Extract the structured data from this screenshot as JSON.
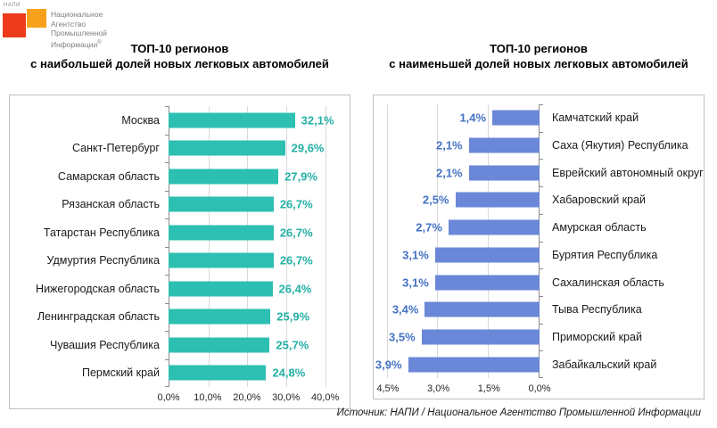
{
  "logo": {
    "mark_word": "НАПИ",
    "org_lines": [
      "Национальное",
      "Агентство",
      "Промышленной",
      "Информации"
    ],
    "registered_mark": "®",
    "red": "#ed3b1b",
    "orange": "#f7a11c"
  },
  "footer": {
    "source": "Источник: НАПИ / Национальное Агентство Промышленной Информации"
  },
  "chart_data": [
    {
      "type": "bar",
      "orientation": "horizontal",
      "direction": "left-to-right",
      "title_lines": [
        "ТОП-10 регионов",
        "с наибольшей долей новых легковых автомобилей"
      ],
      "categories": [
        "Москва",
        "Санкт-Петербург",
        "Самарская область",
        "Рязанская область",
        "Татарстан Республика",
        "Удмуртия Республика",
        "Нижегородская область",
        "Ленинградская область",
        "Чувашия Республика",
        "Пермский край"
      ],
      "values": [
        32.1,
        29.6,
        27.9,
        26.7,
        26.7,
        26.7,
        26.4,
        25.9,
        25.7,
        24.8
      ],
      "value_labels": [
        "32,1%",
        "29,6%",
        "27,9%",
        "26,7%",
        "26,7%",
        "26,7%",
        "26,4%",
        "25,9%",
        "25,7%",
        "24,8%"
      ],
      "x_ticks": [
        {
          "label": "0,0%",
          "value": 0
        },
        {
          "label": "10,0%",
          "value": 10
        },
        {
          "label": "20,0%",
          "value": 20
        },
        {
          "label": "30,0%",
          "value": 30
        },
        {
          "label": "40,0%",
          "value": 40
        }
      ],
      "xlim": [
        0,
        46
      ],
      "grid": true,
      "legend": "none",
      "bar_color": "#2dbfb2",
      "value_color": "#24b0a4"
    },
    {
      "type": "bar",
      "orientation": "horizontal",
      "direction": "right-to-left",
      "title_lines": [
        "ТОП-10 регионов",
        "с наименьшей долей новых легковых автомобилей"
      ],
      "categories": [
        "Камчатский край",
        "Саха (Якутия) Республика",
        "Еврейский автономный округ",
        "Хабаровский край",
        "Амурская область",
        "Бурятия Республика",
        "Сахалинская область",
        "Тыва Республика",
        "Приморский край",
        "Забайкальский край"
      ],
      "values": [
        1.4,
        2.1,
        2.1,
        2.5,
        2.7,
        3.1,
        3.1,
        3.4,
        3.5,
        3.9
      ],
      "value_labels": [
        "1,4%",
        "2,1%",
        "2,1%",
        "2,5%",
        "2,7%",
        "3,1%",
        "3,1%",
        "3,4%",
        "3,5%",
        "3,9%"
      ],
      "x_ticks": [
        {
          "label": "4,5%",
          "value": 4.5
        },
        {
          "label": "3,0%",
          "value": 3.0
        },
        {
          "label": "1,5%",
          "value": 1.5
        },
        {
          "label": "0,0%",
          "value": 0
        }
      ],
      "xlim": [
        0,
        4.92
      ],
      "grid": true,
      "legend": "none",
      "bar_color": "#6a87d8",
      "value_color": "#4472c4"
    }
  ]
}
